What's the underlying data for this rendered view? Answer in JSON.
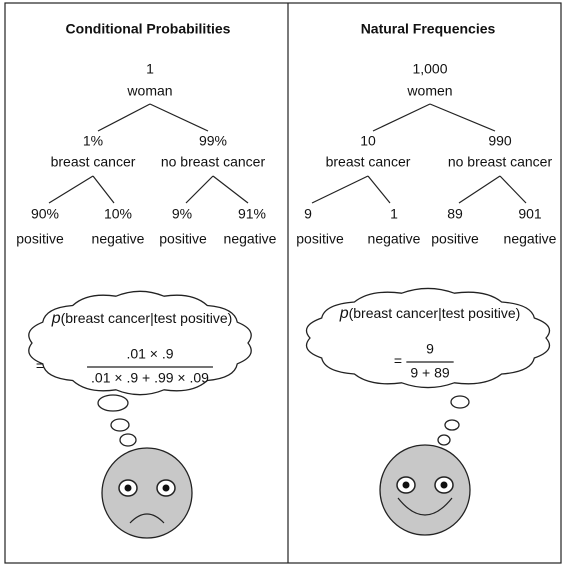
{
  "panels": [
    {
      "title": "Conditional Probabilities",
      "root": {
        "value": "1",
        "label": "woman"
      },
      "branches": [
        {
          "value": "1%",
          "label": "breast cancer",
          "leaves": [
            {
              "value": "90%",
              "label": "positive"
            },
            {
              "value": "10%",
              "label": "negative"
            }
          ]
        },
        {
          "value": "99%",
          "label": "no breast cancer",
          "leaves": [
            {
              "value": "9%",
              "label": "positive"
            },
            {
              "value": "91%",
              "label": "negative"
            }
          ]
        }
      ],
      "thought": {
        "symbol": "p",
        "expression": "(breast cancer|test positive)",
        "equals": "=",
        "numerator": ".01 × .9",
        "denominator": ".01 × .9 + .99 × .09"
      }
    },
    {
      "title": "Natural Frequencies",
      "root": {
        "value": "1,000",
        "label": "women"
      },
      "branches": [
        {
          "value": "10",
          "label": "breast cancer",
          "leaves": [
            {
              "value": "9",
              "label": "positive"
            },
            {
              "value": "1",
              "label": "negative"
            }
          ]
        },
        {
          "value": "990",
          "label": "no breast cancer",
          "leaves": [
            {
              "value": "89",
              "label": "positive"
            },
            {
              "value": "901",
              "label": "negative"
            }
          ]
        }
      ],
      "thought": {
        "symbol": "p",
        "expression": "(breast cancer|test positive)",
        "equals": "=",
        "numerator": "9",
        "denominator": "9 + 89"
      }
    }
  ]
}
